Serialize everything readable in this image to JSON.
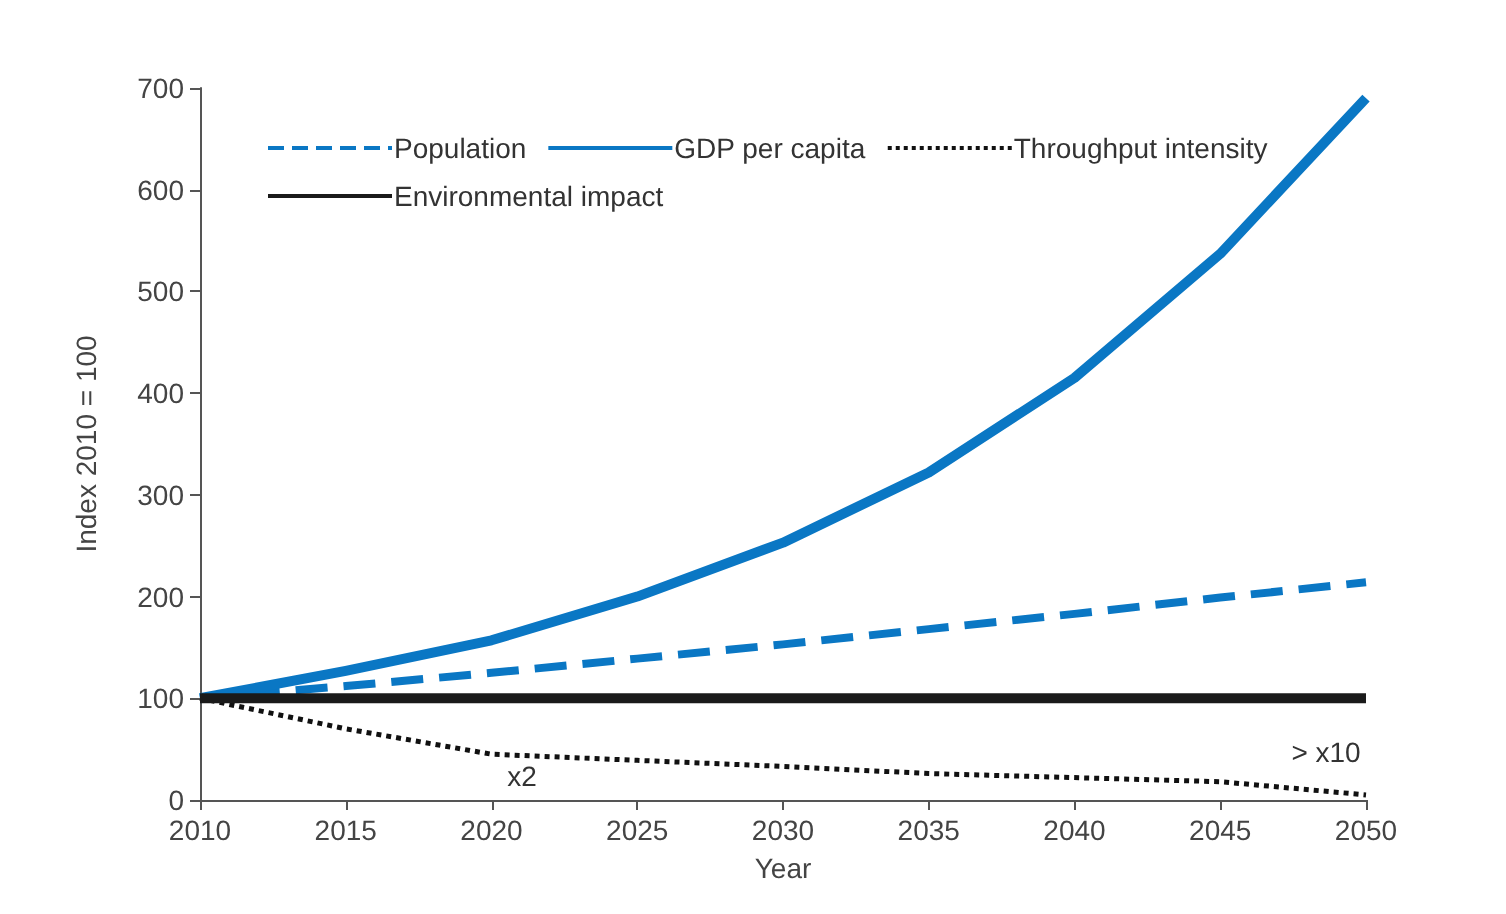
{
  "chart_data": {
    "type": "line",
    "xlabel": "Year",
    "ylabel": "Index 2010 = 100",
    "x": [
      2010,
      2015,
      2020,
      2025,
      2030,
      2035,
      2040,
      2045,
      2050
    ],
    "series": [
      {
        "name": "Population",
        "color": "#0a77c4",
        "line_style": "dashed",
        "values": [
          100,
          112,
          125,
          139,
          153,
          168,
          183,
          199,
          214
        ]
      },
      {
        "name": "GDP per capita",
        "color": "#0a77c4",
        "line_style": "solid",
        "values": [
          100,
          127,
          157,
          200,
          253,
          322,
          415,
          537,
          690
        ]
      },
      {
        "name": "Throughput intensity",
        "color": "#111111",
        "line_style": "dotted",
        "values": [
          100,
          70,
          45,
          39,
          33,
          26,
          22,
          18,
          5
        ]
      },
      {
        "name": "Environmental impact",
        "color": "#1a1a1a",
        "line_style": "solid",
        "values": [
          100,
          100,
          100,
          100,
          100,
          100,
          100,
          100,
          100
        ]
      }
    ],
    "xlim": [
      2010,
      2050
    ],
    "xticks": [
      2010,
      2015,
      2020,
      2025,
      2030,
      2035,
      2040,
      2045,
      2050
    ],
    "ylim": [
      0,
      700
    ],
    "yticks": [
      0,
      100,
      200,
      300,
      400,
      500,
      600,
      700
    ],
    "grid": false,
    "legend": "top left",
    "marker": "none",
    "annotations": [
      "x2",
      "> x10"
    ]
  }
}
